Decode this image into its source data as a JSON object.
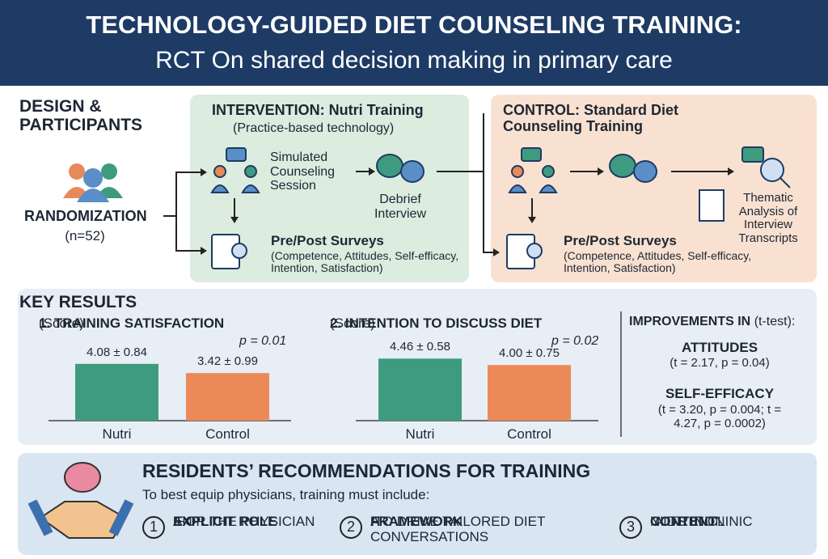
{
  "header": {
    "title": "TECHNOLOGY-GUIDED DIET COUNSELING TRAINING:",
    "subtitle": "RCT On shared decision making in primary care"
  },
  "design": {
    "title": "DESIGN & PARTICIPANTS",
    "randomization": "RANDOMIZATION",
    "n": "(n=52)"
  },
  "intervention": {
    "title": "INTERVENTION: Nutri Training",
    "subtitle": "(Practice-based technology)",
    "session": "Simulated Counseling Session",
    "debrief": "Debrief Interview",
    "surveys": "Pre/Post Surveys",
    "surveys_detail": "(Competence, Attitudes, Self-efficacy, Intention, Satisfaction)"
  },
  "control": {
    "title": "CONTROL: Standard Diet Counseling Training",
    "analysis": "Thematic Analysis of Interview Transcripts",
    "surveys": "Pre/Post Surveys",
    "surveys_detail": "(Competence, Attitudes, Self-efficacy, Intention, Satisfaction)"
  },
  "results": {
    "title": "KEY RESULTS",
    "charts": [
      {
        "title": "1. TRAINING SATISFACTION",
        "unit": "(Score)",
        "p": "p = 0.01",
        "categories": [
          "Nutri",
          "Control"
        ],
        "values": [
          4.08,
          3.42
        ],
        "value_labels": [
          "4.08 ± 0.84",
          "3.42 ± 0.99"
        ],
        "colors": [
          "#3f9b80",
          "#ec8a57"
        ]
      },
      {
        "title": "2. INTENTION TO DISCUSS DIET",
        "unit": "(Score)",
        "p": "p = 0.02",
        "categories": [
          "Nutri",
          "Control"
        ],
        "values": [
          4.46,
          4.0
        ],
        "value_labels": [
          "4.46 ± 0.58",
          "4.00 ± 0.75"
        ],
        "colors": [
          "#3f9b80",
          "#ec8a57"
        ]
      }
    ],
    "improvements": {
      "title": "IMPROVEMENTS IN",
      "method": "(t-test):",
      "items": [
        {
          "name": "ATTITUDES",
          "stat": "(t = 2.17, p = 0.04)"
        },
        {
          "name": "SELF-EFFICACY",
          "stat": "(t = 3.20, p = 0.004; t = 4.27, p = 0.0002)"
        }
      ]
    }
  },
  "recommendations": {
    "title": "RESIDENTS’ RECOMMENDATIONS FOR TRAINING",
    "intro": "To best equip physicians, training must include:",
    "items": [
      {
        "number": "1",
        "pre": "AN ",
        "bold": "EXPLICIT ROLE",
        "post": " FOR THE PHYSICIAN"
      },
      {
        "number": "2",
        "pre": "A ",
        "bold": "FRAMEWORK",
        "post": " TO DRIVE TAILORED DIET CONVERSATIONS"
      },
      {
        "number": "3",
        "pre": "NUTRITION ",
        "bold": "CONTENT",
        "post": " AIDS IN CLINIC"
      }
    ]
  }
}
